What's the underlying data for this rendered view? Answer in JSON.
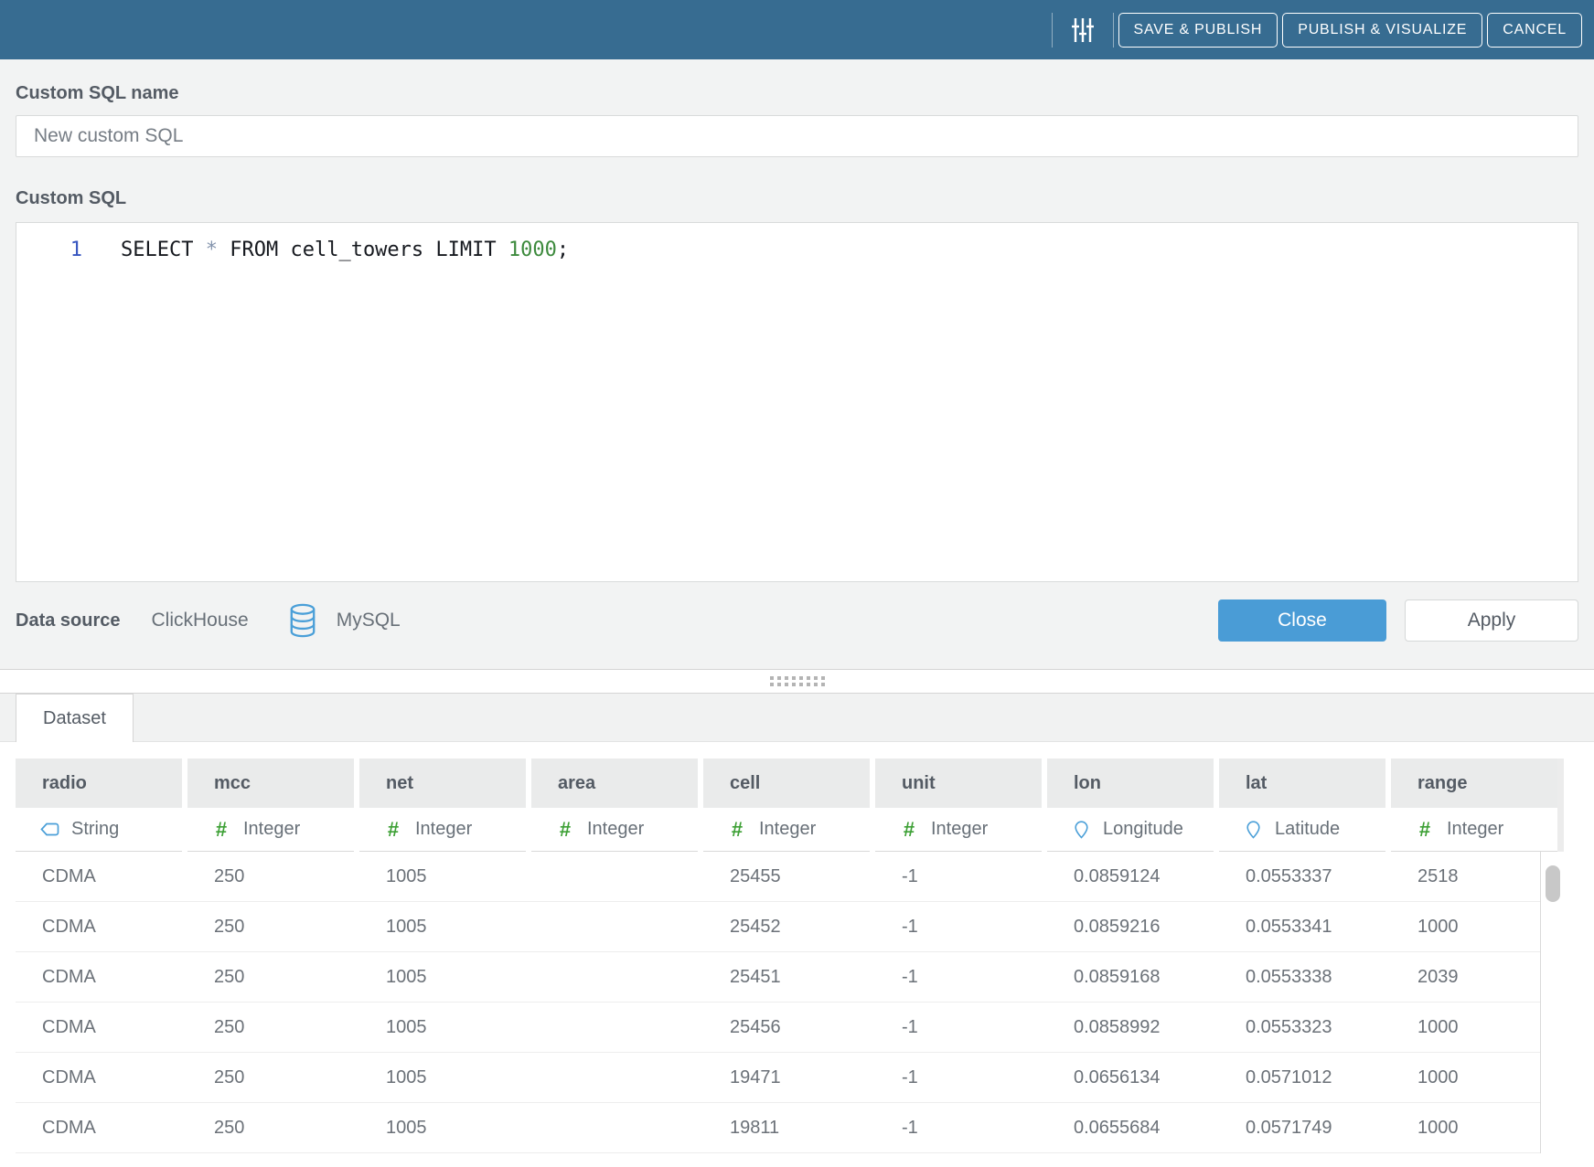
{
  "title_bar": {
    "buttons": [
      {
        "label": "SAVE & PUBLISH"
      },
      {
        "label": "PUBLISH & VISUALIZE"
      },
      {
        "label": "CANCEL"
      }
    ]
  },
  "form": {
    "name_label": "Custom SQL name",
    "name_value": "New custom SQL",
    "sql_label": "Custom SQL",
    "editor": {
      "line_number": "1",
      "code": {
        "kw_select": "SELECT",
        "star": "*",
        "kw_from": "FROM",
        "table_name": "cell_towers",
        "kw_limit": "LIMIT",
        "number": "1000",
        "semicolon": ";"
      }
    }
  },
  "data_source": {
    "label": "Data source",
    "source_name": "ClickHouse",
    "engine_name": "MySQL"
  },
  "editor_actions": {
    "close_label": "Close",
    "apply_label": "Apply"
  },
  "dataset_panel": {
    "tab_label": "Dataset",
    "columns": [
      {
        "name": "radio",
        "type": "String",
        "icon": "string-type-icon"
      },
      {
        "name": "mcc",
        "type": "Integer",
        "icon": "integer-type-icon"
      },
      {
        "name": "net",
        "type": "Integer",
        "icon": "integer-type-icon"
      },
      {
        "name": "area",
        "type": "Integer",
        "icon": "integer-type-icon"
      },
      {
        "name": "cell",
        "type": "Integer",
        "icon": "integer-type-icon"
      },
      {
        "name": "unit",
        "type": "Integer",
        "icon": "integer-type-icon"
      },
      {
        "name": "lon",
        "type": "Longitude",
        "icon": "longitude-type-icon"
      },
      {
        "name": "lat",
        "type": "Latitude",
        "icon": "latitude-type-icon"
      },
      {
        "name": "range",
        "type": "Integer",
        "icon": "integer-type-icon"
      }
    ],
    "rows": [
      [
        "CDMA",
        "250",
        "1005",
        "",
        "25455",
        "-1",
        "0.0859124",
        "0.0553337",
        "2518"
      ],
      [
        "CDMA",
        "250",
        "1005",
        "",
        "25452",
        "-1",
        "0.0859216",
        "0.0553341",
        "1000"
      ],
      [
        "CDMA",
        "250",
        "1005",
        "",
        "25451",
        "-1",
        "0.0859168",
        "0.0553338",
        "2039"
      ],
      [
        "CDMA",
        "250",
        "1005",
        "",
        "25456",
        "-1",
        "0.0858992",
        "0.0553323",
        "1000"
      ],
      [
        "CDMA",
        "250",
        "1005",
        "",
        "19471",
        "-1",
        "0.0656134",
        "0.0571012",
        "1000"
      ],
      [
        "CDMA",
        "250",
        "1005",
        "",
        "19811",
        "-1",
        "0.0655684",
        "0.0571749",
        "1000"
      ]
    ]
  },
  "colors": {
    "top_bar": "#376c91",
    "primary_button": "#4a9cd6",
    "label_text": "#545b64",
    "muted_text": "#687078",
    "type_icon_blue": "#4a9fd8",
    "type_icon_green": "#3da035",
    "sql_number_green": "#3d8a3d",
    "sql_line_number_blue": "#3756c0"
  }
}
